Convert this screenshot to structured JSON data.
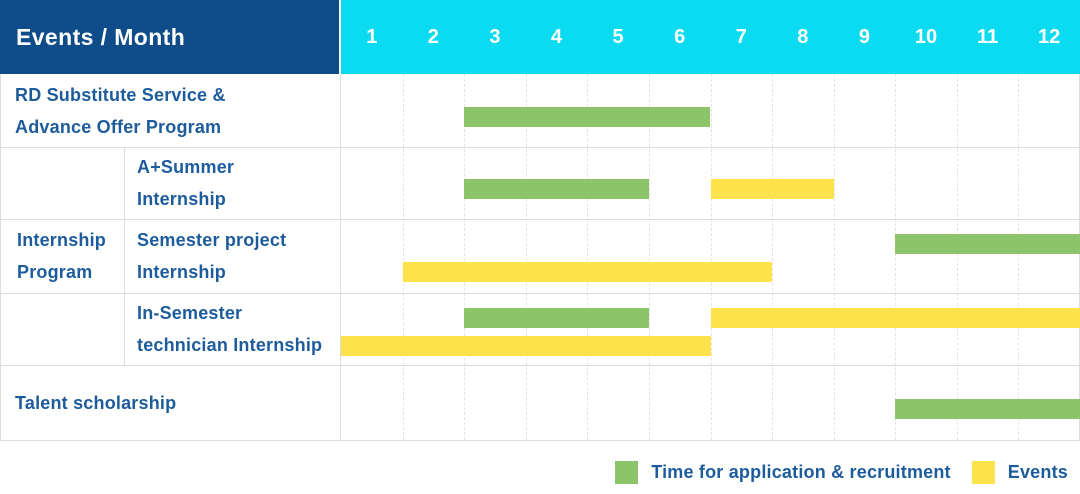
{
  "header": {
    "title": "Events / Month"
  },
  "colors": {
    "header_bg": "#0F4C8A",
    "months_bg": "#0BDBF0",
    "label_text": "#1D5C9C",
    "header_text": "#FFFFFF",
    "grid_border": "#DCDCDC",
    "application_green": "#8CC569",
    "events_yellow": "#FDE24B",
    "background": "#FFFFFF"
  },
  "chart_data": {
    "type": "bar",
    "subtype": "gantt",
    "title": "Events / Month",
    "x_axis_label": "Month",
    "x_categories": [
      "1",
      "2",
      "3",
      "4",
      "5",
      "6",
      "7",
      "8",
      "9",
      "10",
      "11",
      "12"
    ],
    "x_range": [
      1,
      12
    ],
    "grid": true,
    "legend_position": "bottom-right",
    "series": [
      {
        "key": "application",
        "label": "Time for application & recruitment",
        "color": "#8CC569"
      },
      {
        "key": "events",
        "label": "Events",
        "color": "#FDE24B"
      }
    ],
    "group": {
      "label": "Internship Program",
      "label_lines": [
        "Internship",
        "Program"
      ]
    },
    "rows": [
      {
        "label": "RD Substitute Service & Advance Offer Program",
        "label_lines": [
          "RD Substitute Service &",
          "Advance Offer Program"
        ],
        "group": false,
        "bars": [
          {
            "series": "application",
            "start_month": 3,
            "end_month": 6,
            "band": "single"
          }
        ]
      },
      {
        "label": "A+Summer Internship",
        "label_lines": [
          "A+Summer",
          "Internship"
        ],
        "group": true,
        "bars": [
          {
            "series": "application",
            "start_month": 3,
            "end_month": 5,
            "band": "single"
          },
          {
            "series": "events",
            "start_month": 7,
            "end_month": 8,
            "band": "single"
          }
        ]
      },
      {
        "label": "Semester project Internship",
        "label_lines": [
          "Semester project",
          "Internship"
        ],
        "group": true,
        "bars": [
          {
            "series": "application",
            "start_month": 10,
            "end_month": 12,
            "band": "top"
          },
          {
            "series": "events",
            "start_month": 2,
            "end_month": 7,
            "band": "bottom"
          }
        ]
      },
      {
        "label": "In-Semester technician Internship",
        "label_lines": [
          "In-Semester",
          "technician Internship"
        ],
        "group": true,
        "bars": [
          {
            "series": "application",
            "start_month": 3,
            "end_month": 5,
            "band": "top"
          },
          {
            "series": "events",
            "start_month": 7,
            "end_month": 12,
            "band": "top"
          },
          {
            "series": "events",
            "start_month": 1,
            "end_month": 6,
            "band": "bottom"
          }
        ]
      },
      {
        "label": "Talent scholarship",
        "label_lines": [
          "Talent scholarship"
        ],
        "group": false,
        "bars": [
          {
            "series": "application",
            "start_month": 10,
            "end_month": 12,
            "band": "single"
          }
        ]
      }
    ]
  }
}
